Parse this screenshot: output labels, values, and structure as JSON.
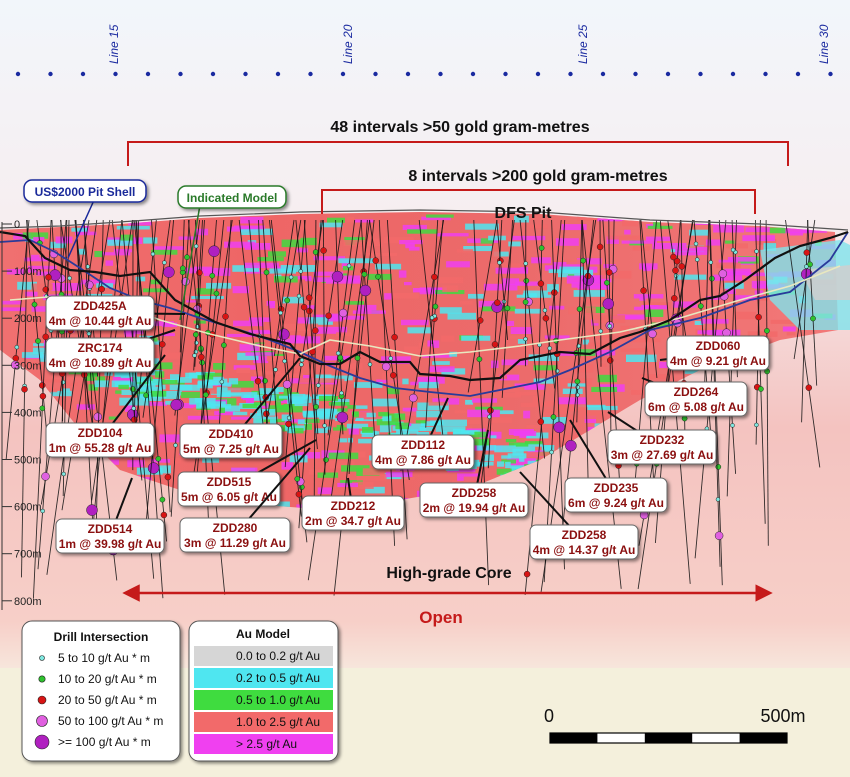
{
  "section_lines": [
    "Line 15",
    "Line 20",
    "Line 25",
    "Line 30"
  ],
  "depth_ticks": [
    "0",
    "100m",
    "200m",
    "300m",
    "400m",
    "500m",
    "600m",
    "700m",
    "800m"
  ],
  "banners": {
    "intervals_50": "48 intervals >50 gold gram-metres",
    "intervals_200": "8 intervals >200 gold gram-metres",
    "dfs_pit": "DFS Pit",
    "high_grade_core": "High-grade Core",
    "open": "Open"
  },
  "callouts": {
    "pit_shell": "US$2000 Pit Shell",
    "indicated_model": "Indicated Model"
  },
  "intercepts": [
    {
      "hole": "ZDD425A",
      "value": "4m @ 10.44 g/t Au"
    },
    {
      "hole": "ZRC174",
      "value": "4m @ 10.89 g/t Au"
    },
    {
      "hole": "ZDD104",
      "value": "1m @ 55.28 g/t Au"
    },
    {
      "hole": "ZDD514",
      "value": "1m @ 39.98 g/t Au"
    },
    {
      "hole": "ZDD410",
      "value": "5m @ 7.25 g/t Au"
    },
    {
      "hole": "ZDD515",
      "value": "5m @ 6.05 g/t Au"
    },
    {
      "hole": "ZDD280",
      "value": "3m @ 11.29 g/t Au"
    },
    {
      "hole": "ZDD212",
      "value": "2m @ 34.7 g/t Au"
    },
    {
      "hole": "ZDD112",
      "value": "4m @ 7.86 g/t Au"
    },
    {
      "hole": "ZDD258",
      "value": "2m @ 19.94 g/t Au"
    },
    {
      "hole": "ZDD258",
      "value": "4m @ 14.37 g/t Au"
    },
    {
      "hole": "ZDD235",
      "value": "6m @ 9.24 g/t Au"
    },
    {
      "hole": "ZDD232",
      "value": "3m @ 27.69 g/t Au"
    },
    {
      "hole": "ZDD264",
      "value": "6m @ 5.08 g/t Au"
    },
    {
      "hole": "ZDD060",
      "value": "4m @ 9.21 g/t Au"
    }
  ],
  "legend_drill": {
    "title": "Drill Intersection",
    "items": [
      {
        "label": "5 to 10 g/t Au * m",
        "color": "#7fe8e0"
      },
      {
        "label": "10 to 20 g/t Au * m",
        "color": "#2ec22e"
      },
      {
        "label": "20 to 50 g/t Au * m",
        "color": "#d81414"
      },
      {
        "label": "50 to 100 g/t Au * m",
        "color": "#e060e0"
      },
      {
        "label": ">= 100 g/t Au * m",
        "color": "#b020c0"
      }
    ]
  },
  "legend_model": {
    "title": "Au Model",
    "items": [
      {
        "label": "0.0 to 0.2 g/t Au",
        "color": "#d6d6d6"
      },
      {
        "label": "0.2 to 0.5 g/t Au",
        "color": "#4fe6f0"
      },
      {
        "label": "0.5 to 1.0 g/t Au",
        "color": "#3fdc3f"
      },
      {
        "label": "1.0 to 2.5 g/t Au",
        "color": "#f26a6a"
      },
      {
        "label": "> 2.5 g/t Au",
        "color": "#f040f0"
      }
    ]
  },
  "scale_bar": {
    "start": "0",
    "end": "500m"
  }
}
